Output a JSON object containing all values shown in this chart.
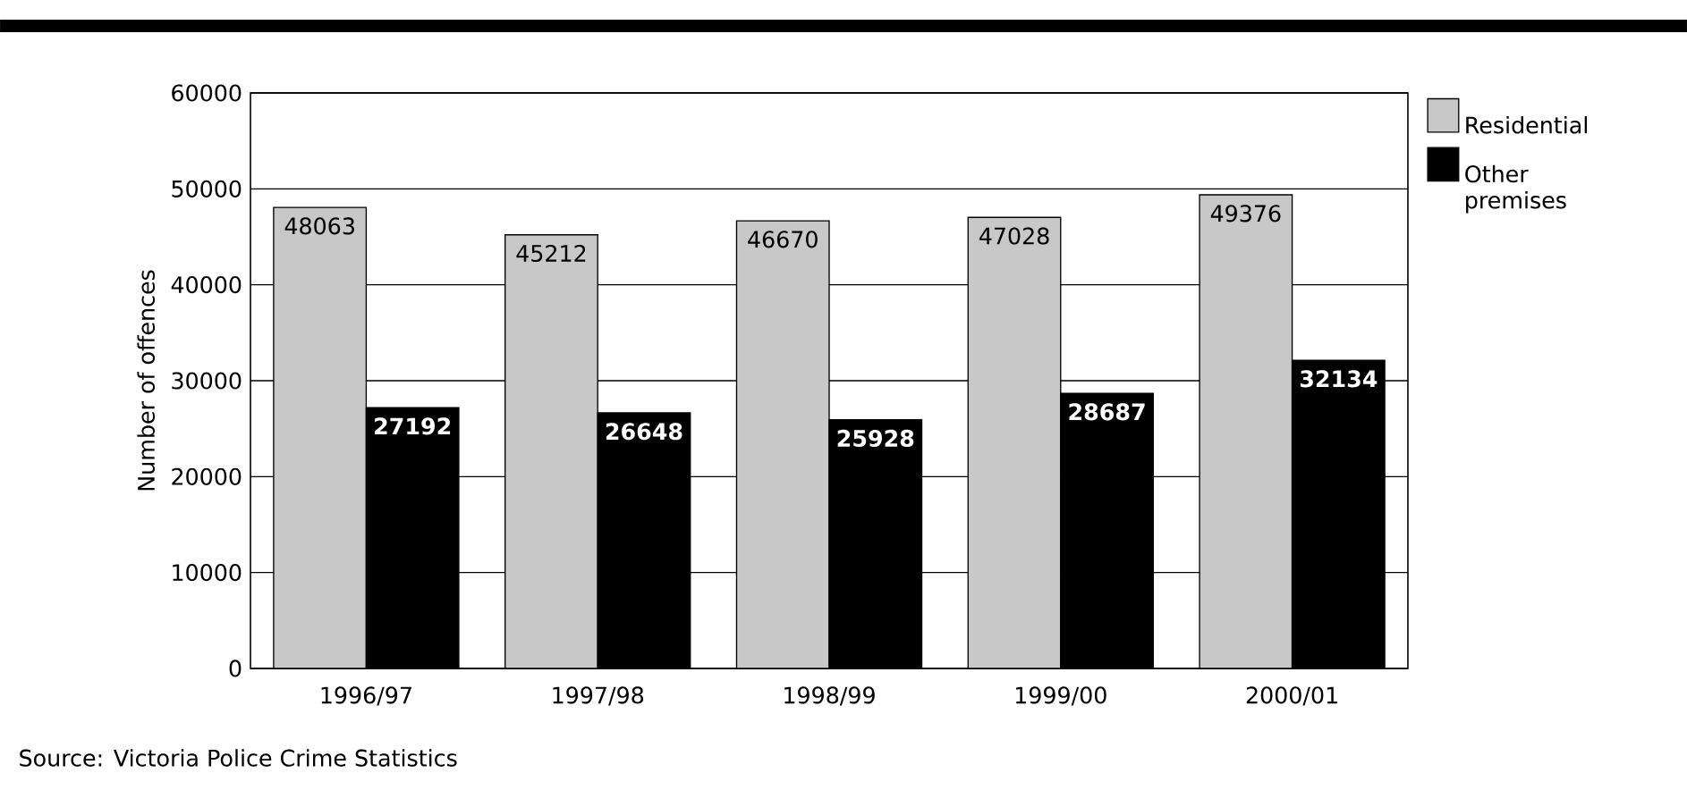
{
  "chart_data": {
    "type": "bar",
    "categories": [
      "1996/97",
      "1997/98",
      "1998/99",
      "1999/00",
      "2000/01"
    ],
    "ylabel": "Number of offences",
    "series": [
      {
        "name": "Residential",
        "color": "#c8c8c8",
        "values": [
          48063,
          45212,
          46670,
          47028,
          49376
        ]
      },
      {
        "name": "Other premises",
        "color": "#000000",
        "values": [
          27192,
          26648,
          25928,
          28687,
          32134
        ]
      }
    ],
    "ylim": [
      0,
      60000
    ],
    "yticks": [
      0,
      10000,
      20000,
      30000,
      40000,
      50000,
      60000
    ],
    "grid": "y",
    "legend": "top right",
    "data_labels": true,
    "annotations": [
      "Source: Victoria Police Crime Statistics"
    ]
  }
}
